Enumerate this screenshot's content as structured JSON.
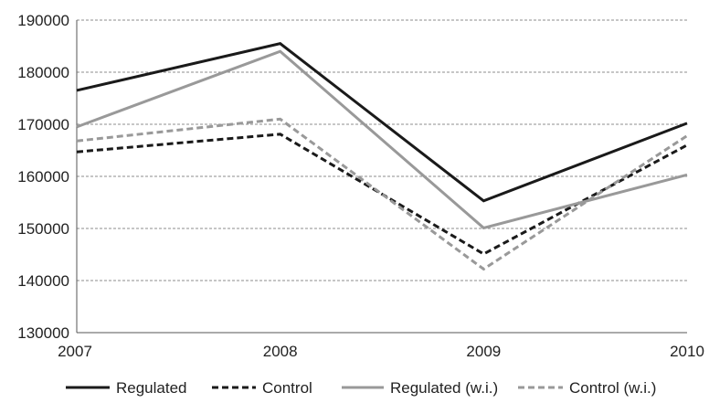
{
  "chart_data": {
    "type": "line",
    "title": "",
    "xlabel": "",
    "ylabel": "",
    "x": [
      "2007",
      "2008",
      "2009",
      "2010"
    ],
    "ylim": [
      130000,
      190000
    ],
    "yticks": [
      130000,
      140000,
      150000,
      160000,
      170000,
      180000,
      190000
    ],
    "ytick_labels": [
      "130000",
      "140000",
      "150000",
      "160000",
      "170000",
      "180000",
      "190000"
    ],
    "grid": "horizontal dashed",
    "legend_position": "bottom",
    "series": [
      {
        "name": "Regulated",
        "values": [
          176500,
          185500,
          155300,
          170200
        ],
        "color": "#1a1a1a",
        "style": "solid"
      },
      {
        "name": "Control",
        "values": [
          164700,
          168100,
          145100,
          166000
        ],
        "color": "#1a1a1a",
        "style": "dashed"
      },
      {
        "name": "Regulated (w.i.)",
        "values": [
          169500,
          184000,
          150100,
          160300
        ],
        "color": "#999999",
        "style": "solid"
      },
      {
        "name": "Control (w.i.)",
        "values": [
          166800,
          171000,
          142200,
          167800
        ],
        "color": "#999999",
        "style": "dashed"
      }
    ]
  }
}
